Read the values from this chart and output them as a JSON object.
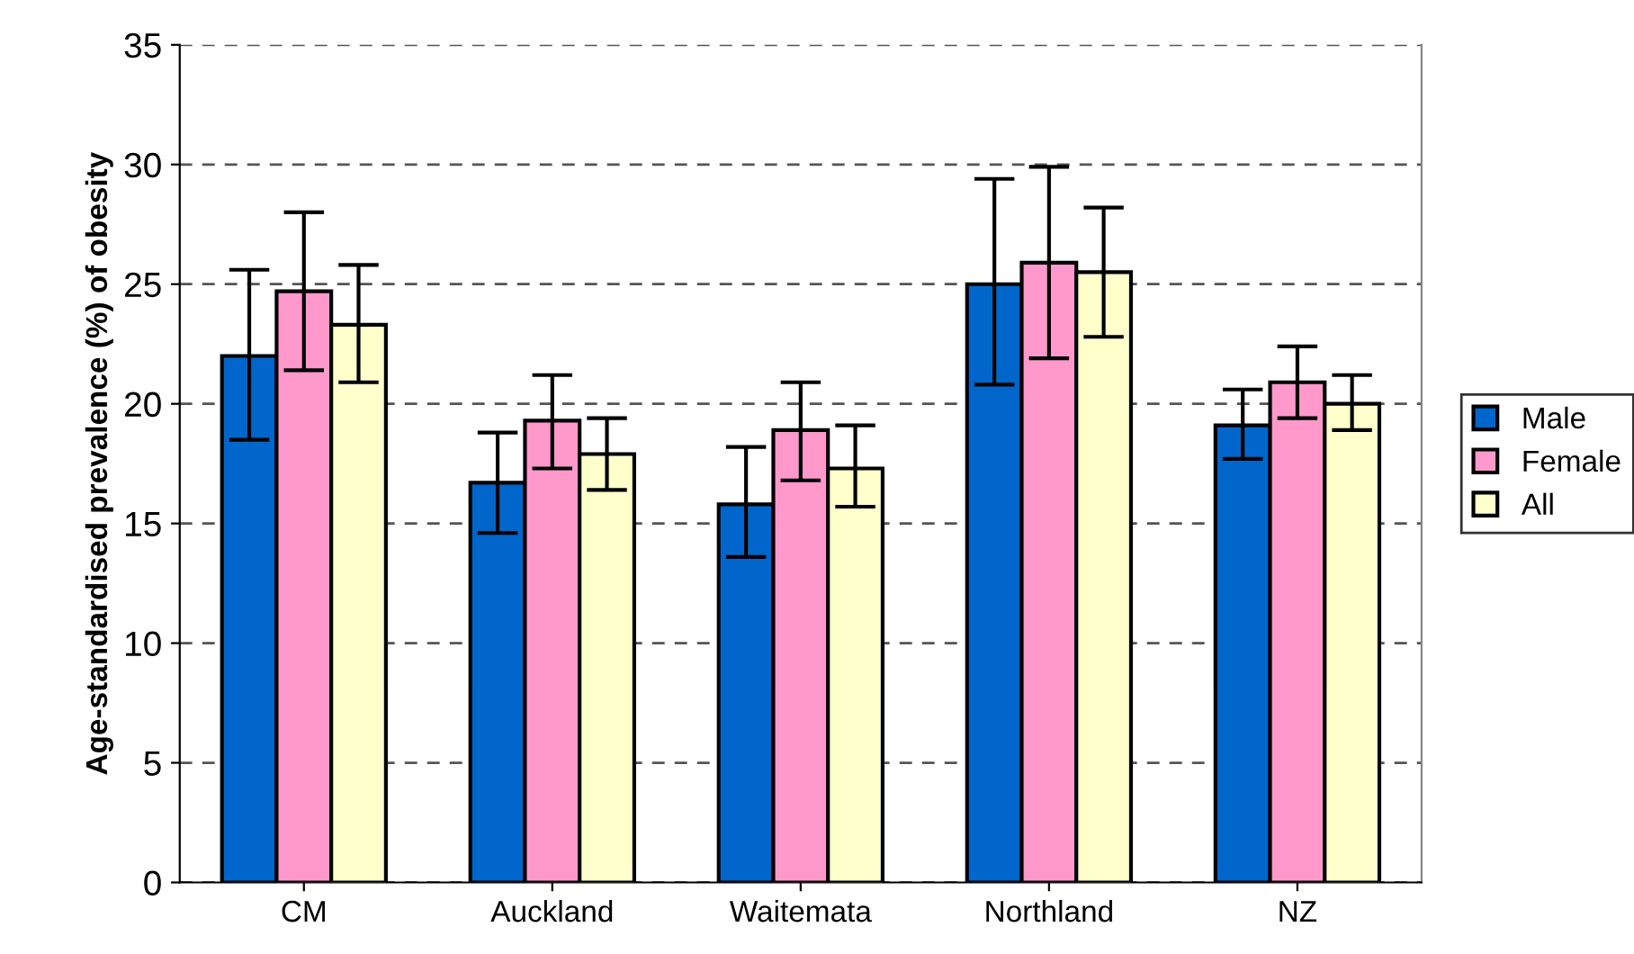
{
  "chart_data": {
    "type": "bar",
    "ylabel": "Age-standardised prevalence (%) of obesity",
    "categories": [
      "CM",
      "Auckland",
      "Waitemata",
      "Northland",
      "NZ"
    ],
    "series": [
      {
        "name": "Male",
        "color": "#0066cc",
        "values": [
          22.0,
          16.7,
          15.8,
          25.0,
          19.1
        ],
        "errors": [
          [
            18.5,
            25.6
          ],
          [
            14.6,
            18.8
          ],
          [
            13.6,
            18.2
          ],
          [
            20.8,
            29.4
          ],
          [
            17.7,
            20.6
          ]
        ]
      },
      {
        "name": "Female",
        "color": "#ff99cc",
        "values": [
          24.7,
          19.3,
          18.9,
          25.9,
          20.9
        ],
        "errors": [
          [
            21.4,
            28.0
          ],
          [
            17.3,
            21.2
          ],
          [
            16.8,
            20.9
          ],
          [
            21.9,
            29.9
          ],
          [
            19.4,
            22.4
          ]
        ]
      },
      {
        "name": "All",
        "color": "#ffffcc",
        "values": [
          23.3,
          17.9,
          17.3,
          25.5,
          20.0
        ],
        "errors": [
          [
            20.9,
            25.8
          ],
          [
            16.4,
            19.4
          ],
          [
            15.7,
            19.1
          ],
          [
            22.8,
            28.2
          ],
          [
            18.9,
            21.2
          ]
        ]
      }
    ],
    "ylim": [
      0,
      35
    ],
    "yticks": [
      0,
      5,
      10,
      15,
      20,
      25,
      30,
      35
    ],
    "grid": "y",
    "legend": "right"
  }
}
